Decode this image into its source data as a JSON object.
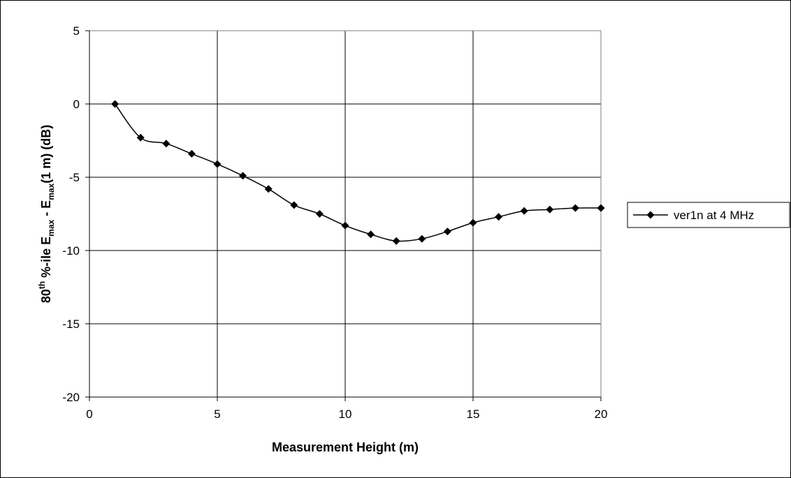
{
  "chart_data": {
    "type": "line",
    "title": "",
    "xlabel": "Measurement Height (m)",
    "ylabel": {
      "prefix": "80",
      "sup": "th",
      "part1": " %-ile E",
      "sub1": "max",
      "part2": " - E",
      "sub2": "max",
      "part3": "(1 m) (dB)"
    },
    "xlim": [
      0,
      20
    ],
    "ylim": [
      -20,
      5
    ],
    "xticks": [
      0,
      5,
      10,
      15,
      20
    ],
    "yticks": [
      5,
      0,
      -5,
      -10,
      -15,
      -20
    ],
    "grid": true,
    "legend_position": "right",
    "series": [
      {
        "name": "ver1n at 4 MHz",
        "color": "#000000",
        "marker": "diamond",
        "x": [
          1,
          2,
          3,
          4,
          5,
          6,
          7,
          8,
          9,
          10,
          11,
          12,
          13,
          14,
          15,
          16,
          17,
          18,
          19,
          20
        ],
        "y": [
          0.0,
          -2.3,
          -2.7,
          -3.4,
          -4.1,
          -4.9,
          -5.8,
          -6.9,
          -7.5,
          -8.3,
          -8.9,
          -9.35,
          -9.2,
          -8.7,
          -8.1,
          -7.7,
          -7.3,
          -7.2,
          -7.1,
          -7.1
        ]
      }
    ]
  }
}
